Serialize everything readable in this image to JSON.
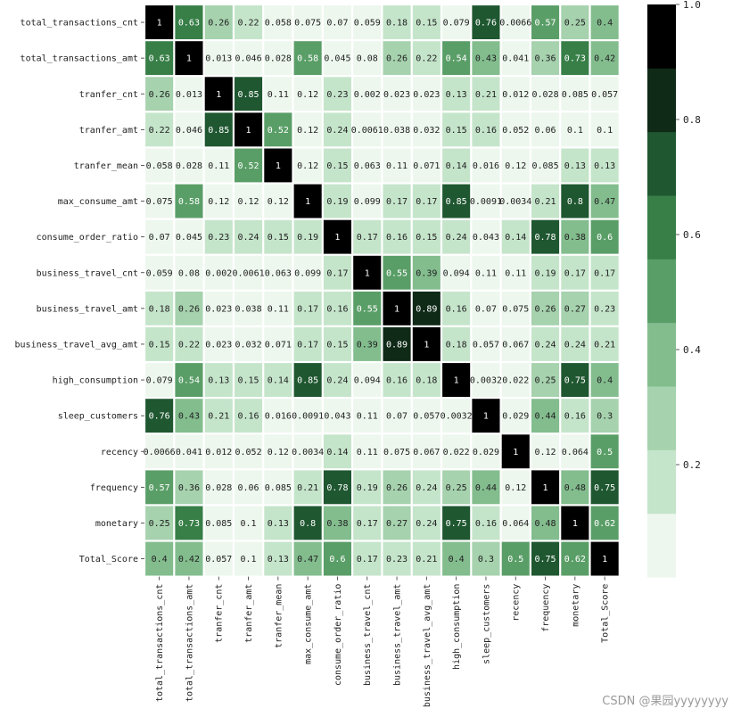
{
  "chart_data": {
    "type": "heatmap",
    "title": "",
    "labels": [
      "total_transactions_cnt",
      "total_transactions_amt",
      "tranfer_cnt",
      "tranfer_amt",
      "tranfer_mean",
      "max_consume_amt",
      "consume_order_ratio",
      "business_travel_cnt",
      "business_travel_amt",
      "business_travel_avg_amt",
      "high_consumption",
      "sleep_customers",
      "recency",
      "frequency",
      "monetary",
      "Total_Score"
    ],
    "matrix": [
      [
        "1",
        "0.63",
        "0.26",
        "0.22",
        "0.058",
        "0.075",
        "0.07",
        "0.059",
        "0.18",
        "0.15",
        "0.079",
        "0.76",
        "0.0066",
        "0.57",
        "0.25",
        "0.4"
      ],
      [
        "0.63",
        "1",
        "0.013",
        "0.046",
        "0.028",
        "0.58",
        "0.045",
        "0.08",
        "0.26",
        "0.22",
        "0.54",
        "0.43",
        "0.041",
        "0.36",
        "0.73",
        "0.42"
      ],
      [
        "0.26",
        "0.013",
        "1",
        "0.85",
        "0.11",
        "0.12",
        "0.23",
        "0.002",
        "0.023",
        "0.023",
        "0.13",
        "0.21",
        "0.012",
        "0.028",
        "0.085",
        "0.057"
      ],
      [
        "0.22",
        "0.046",
        "0.85",
        "1",
        "0.52",
        "0.12",
        "0.24",
        "0.0061",
        "0.038",
        "0.032",
        "0.15",
        "0.16",
        "0.052",
        "0.06",
        "0.1",
        "0.1"
      ],
      [
        "0.058",
        "0.028",
        "0.11",
        "0.52",
        "1",
        "0.12",
        "0.15",
        "0.063",
        "0.11",
        "0.071",
        "0.14",
        "0.016",
        "0.12",
        "0.085",
        "0.13",
        "0.13"
      ],
      [
        "0.075",
        "0.58",
        "0.12",
        "0.12",
        "0.12",
        "1",
        "0.19",
        "0.099",
        "0.17",
        "0.17",
        "0.85",
        "0.0091",
        "0.0034",
        "0.21",
        "0.8",
        "0.47"
      ],
      [
        "0.07",
        "0.045",
        "0.23",
        "0.24",
        "0.15",
        "0.19",
        "1",
        "0.17",
        "0.16",
        "0.15",
        "0.24",
        "0.043",
        "0.14",
        "0.78",
        "0.38",
        "0.6"
      ],
      [
        "0.059",
        "0.08",
        "0.002",
        "0.0061",
        "0.063",
        "0.099",
        "0.17",
        "1",
        "0.55",
        "0.39",
        "0.094",
        "0.11",
        "0.11",
        "0.19",
        "0.17",
        "0.17"
      ],
      [
        "0.18",
        "0.26",
        "0.023",
        "0.038",
        "0.11",
        "0.17",
        "0.16",
        "0.55",
        "1",
        "0.89",
        "0.16",
        "0.07",
        "0.075",
        "0.26",
        "0.27",
        "0.23"
      ],
      [
        "0.15",
        "0.22",
        "0.023",
        "0.032",
        "0.071",
        "0.17",
        "0.15",
        "0.39",
        "0.89",
        "1",
        "0.18",
        "0.057",
        "0.067",
        "0.24",
        "0.24",
        "0.21"
      ],
      [
        "0.079",
        "0.54",
        "0.13",
        "0.15",
        "0.14",
        "0.85",
        "0.24",
        "0.094",
        "0.16",
        "0.18",
        "1",
        "0.0032",
        "0.022",
        "0.25",
        "0.75",
        "0.4"
      ],
      [
        "0.76",
        "0.43",
        "0.21",
        "0.16",
        "0.016",
        "0.0091",
        "0.043",
        "0.11",
        "0.07",
        "0.057",
        "0.0032",
        "1",
        "0.029",
        "0.44",
        "0.16",
        "0.3"
      ],
      [
        "0.0066",
        "0.041",
        "0.012",
        "0.052",
        "0.12",
        "0.0034",
        "0.14",
        "0.11",
        "0.075",
        "0.067",
        "0.022",
        "0.029",
        "1",
        "0.12",
        "0.064",
        "0.5"
      ],
      [
        "0.57",
        "0.36",
        "0.028",
        "0.06",
        "0.085",
        "0.21",
        "0.78",
        "0.19",
        "0.26",
        "0.24",
        "0.25",
        "0.44",
        "0.12",
        "1",
        "0.48",
        "0.75"
      ],
      [
        "0.25",
        "0.73",
        "0.085",
        "0.1",
        "0.13",
        "0.8",
        "0.38",
        "0.17",
        "0.27",
        "0.24",
        "0.75",
        "0.16",
        "0.064",
        "0.48",
        "1",
        "0.62"
      ],
      [
        "0.4",
        "0.42",
        "0.057",
        "0.1",
        "0.13",
        "0.47",
        "0.6",
        "0.17",
        "0.23",
        "0.21",
        "0.4",
        "0.3",
        "0.5",
        "0.75",
        "0.62",
        "1"
      ]
    ],
    "colorbar": {
      "range": [
        0.0,
        1.0
      ],
      "ticks": [
        "0.2",
        "0.4",
        "0.6",
        "0.8",
        "1.0"
      ],
      "colors": [
        "#edf7ee",
        "#c5e5cb",
        "#a6d2ae",
        "#83bd8e",
        "#5a9e67",
        "#377f47",
        "#1f5730",
        "#0f2a17",
        "#000000"
      ]
    }
  },
  "watermark": "CSDN @果园yyyyyyyy"
}
